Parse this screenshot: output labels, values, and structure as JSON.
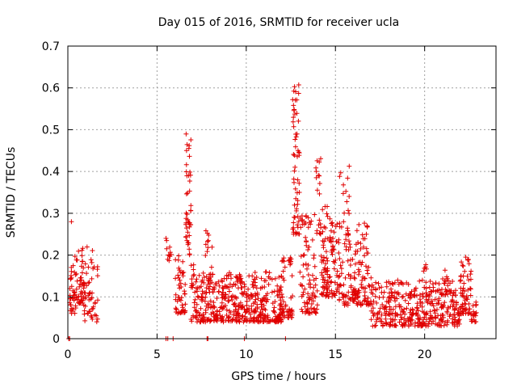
{
  "chart_data": {
    "type": "scatter",
    "title": "Day 015 of 2016, SRMTID for receiver ucla",
    "xlabel": "GPS time / hours",
    "ylabel": "SRMTID / TECUs",
    "xlim": [
      0,
      24
    ],
    "ylim": [
      0,
      0.7
    ],
    "xticks": [
      0,
      5,
      10,
      15,
      20
    ],
    "xtick_labels": [
      "0",
      "5",
      "10",
      "15",
      "20"
    ],
    "yticks": [
      0,
      0.1,
      0.2,
      0.3,
      0.4,
      0.5,
      0.6,
      0.7
    ],
    "ytick_labels": [
      "0",
      "0.1",
      "0.2",
      "0.3",
      "0.4",
      "0.5",
      "0.6",
      "0.7"
    ],
    "grid": true,
    "marker": "plus",
    "series": [
      {
        "name": "SRMTID",
        "color": "#e00000",
        "clusters": [
          {
            "x_range": [
              0.05,
              0.5
            ],
            "y_min": 0.06,
            "y_max": 0.2,
            "n": 40
          },
          {
            "x_range": [
              0.5,
              0.9
            ],
            "y_min": 0.08,
            "y_max": 0.23,
            "n": 40
          },
          {
            "x_range": [
              0.9,
              1.7
            ],
            "y_min": 0.04,
            "y_max": 0.22,
            "n": 50
          },
          {
            "x_range": [
              5.5,
              5.8
            ],
            "y_min": 0.18,
            "y_max": 0.24,
            "n": 10
          },
          {
            "x_range": [
              6.0,
              6.6
            ],
            "y_min": 0.06,
            "y_max": 0.2,
            "n": 50
          },
          {
            "x_range": [
              6.6,
              6.9
            ],
            "y_min": 0.2,
            "y_max": 0.49,
            "n": 45
          },
          {
            "x_range": [
              6.9,
              7.4
            ],
            "y_min": 0.04,
            "y_max": 0.2,
            "n": 40
          },
          {
            "x_range": [
              7.4,
              12.0
            ],
            "y_min": 0.04,
            "y_max": 0.16,
            "n": 420
          },
          {
            "x_range": [
              7.7,
              8.1
            ],
            "y_min": 0.15,
            "y_max": 0.27,
            "n": 12
          },
          {
            "x_range": [
              12.0,
              12.6
            ],
            "y_min": 0.05,
            "y_max": 0.2,
            "n": 50
          },
          {
            "x_range": [
              12.6,
              13.0
            ],
            "y_min": 0.25,
            "y_max": 0.61,
            "n": 60
          },
          {
            "x_range": [
              13.0,
              14.0
            ],
            "y_min": 0.06,
            "y_max": 0.3,
            "n": 90
          },
          {
            "x_range": [
              13.9,
              14.2
            ],
            "y_min": 0.25,
            "y_max": 0.44,
            "n": 20
          },
          {
            "x_range": [
              14.2,
              15.2
            ],
            "y_min": 0.1,
            "y_max": 0.32,
            "n": 110
          },
          {
            "x_range": [
              15.2,
              15.8
            ],
            "y_min": 0.08,
            "y_max": 0.43,
            "n": 60
          },
          {
            "x_range": [
              15.8,
              17.0
            ],
            "y_min": 0.08,
            "y_max": 0.28,
            "n": 110
          },
          {
            "x_range": [
              17.0,
              22.0
            ],
            "y_min": 0.03,
            "y_max": 0.14,
            "n": 380
          },
          {
            "x_range": [
              19.8,
              20.1
            ],
            "y_min": 0.1,
            "y_max": 0.2,
            "n": 12
          },
          {
            "x_range": [
              21.0,
              21.3
            ],
            "y_min": 0.1,
            "y_max": 0.18,
            "n": 10
          },
          {
            "x_range": [
              22.0,
              22.6
            ],
            "y_min": 0.06,
            "y_max": 0.2,
            "n": 60
          },
          {
            "x_range": [
              22.6,
              22.9
            ],
            "y_min": 0.04,
            "y_max": 0.09,
            "n": 18
          }
        ],
        "outliers": [
          [
            0.2,
            0.28
          ],
          [
            5.5,
            0.24
          ]
        ],
        "zero_points": [
          0.05,
          0.1,
          5.5,
          5.6,
          5.9,
          7.8,
          7.85,
          9.9,
          12.2
        ]
      }
    ]
  }
}
